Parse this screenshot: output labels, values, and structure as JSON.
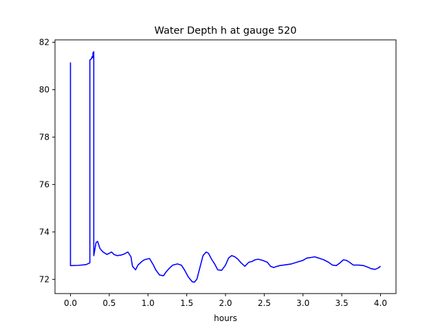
{
  "chart_data": {
    "type": "line",
    "title": "Water Depth h at gauge 520",
    "xlabel": "hours",
    "ylabel": "",
    "xlim": [
      -0.2,
      4.2
    ],
    "ylim": [
      71.4,
      82.1
    ],
    "xticks": [
      0.0,
      0.5,
      1.0,
      1.5,
      2.0,
      2.5,
      3.0,
      3.5,
      4.0
    ],
    "xtick_labels": [
      "0.0",
      "0.5",
      "1.0",
      "1.5",
      "2.0",
      "2.5",
      "3.0",
      "3.5",
      "4.0"
    ],
    "yticks": [
      72,
      74,
      76,
      78,
      80,
      82
    ],
    "ytick_labels": [
      "72",
      "74",
      "76",
      "78",
      "80",
      "82"
    ],
    "grid": false,
    "series": [
      {
        "color": "#0000ff",
        "x": [
          0.0,
          0.0,
          0.01,
          0.1,
          0.2,
          0.24,
          0.25,
          0.25,
          0.27,
          0.28,
          0.29,
          0.29,
          0.3,
          0.3,
          0.33,
          0.35,
          0.38,
          0.42,
          0.47,
          0.5,
          0.53,
          0.56,
          0.6,
          0.65,
          0.7,
          0.74,
          0.78,
          0.8,
          0.84,
          0.87,
          0.92,
          0.95,
          0.98,
          1.02,
          1.07,
          1.1,
          1.15,
          1.2,
          1.23,
          1.27,
          1.32,
          1.38,
          1.43,
          1.47,
          1.52,
          1.57,
          1.6,
          1.63,
          1.67,
          1.71,
          1.75,
          1.78,
          1.82,
          1.86,
          1.9,
          1.95,
          2.0,
          2.04,
          2.08,
          2.12,
          2.16,
          2.2,
          2.25,
          2.3,
          2.34,
          2.38,
          2.42,
          2.48,
          2.54,
          2.58,
          2.62,
          2.67,
          2.7,
          2.75,
          2.85,
          2.95,
          3.0,
          3.05,
          3.1,
          3.15,
          3.2,
          3.27,
          3.33,
          3.38,
          3.43,
          3.48,
          3.52,
          3.56,
          3.6,
          3.65,
          3.72,
          3.78,
          3.83,
          3.88,
          3.93,
          3.97,
          4.0
        ],
        "y": [
          81.15,
          72.58,
          72.58,
          72.59,
          72.62,
          72.68,
          72.7,
          81.25,
          81.3,
          81.4,
          81.35,
          81.55,
          81.6,
          73.0,
          73.55,
          73.6,
          73.3,
          73.15,
          73.05,
          73.1,
          73.15,
          73.05,
          73.0,
          73.02,
          73.08,
          73.15,
          72.95,
          72.55,
          72.4,
          72.6,
          72.75,
          72.82,
          72.85,
          72.88,
          72.6,
          72.4,
          72.18,
          72.15,
          72.3,
          72.45,
          72.6,
          72.65,
          72.6,
          72.4,
          72.1,
          71.9,
          71.88,
          72.0,
          72.5,
          73.0,
          73.15,
          73.1,
          72.85,
          72.65,
          72.4,
          72.38,
          72.6,
          72.9,
          73.0,
          72.95,
          72.85,
          72.7,
          72.55,
          72.72,
          72.75,
          72.82,
          72.85,
          72.8,
          72.72,
          72.55,
          72.5,
          72.55,
          72.58,
          72.6,
          72.65,
          72.75,
          72.8,
          72.9,
          72.92,
          72.95,
          72.9,
          72.82,
          72.72,
          72.6,
          72.58,
          72.7,
          72.82,
          72.8,
          72.72,
          72.6,
          72.6,
          72.58,
          72.52,
          72.45,
          72.42,
          72.48,
          72.55
        ]
      }
    ]
  }
}
